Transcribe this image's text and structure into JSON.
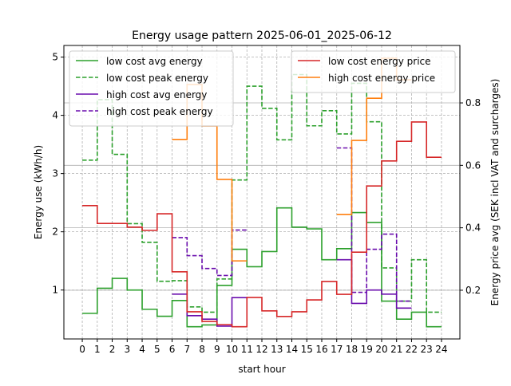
{
  "chart_data": {
    "type": "line",
    "step": "post",
    "title": "Energy usage pattern 2025-06-01_2025-06-12",
    "xlabel": "start hour",
    "ylabel": "Energy use (kWh/h)",
    "ylabel_right": "Energy price avg (SEK incl VAT and surcharges)",
    "x_ticks": [
      "0",
      "1",
      "2",
      "3",
      "4",
      "5",
      "6",
      "7",
      "8",
      "9",
      "10",
      "11",
      "12",
      "13",
      "14",
      "15",
      "16",
      "17",
      "18",
      "19",
      "20",
      "21",
      "22",
      "23",
      "24"
    ],
    "y_ticks": [
      "1",
      "2",
      "3",
      "4",
      "5"
    ],
    "y_ticks_right": [
      "0.2",
      "0.4",
      "0.6",
      "0.8"
    ],
    "xlim": [
      -1.23,
      25.23
    ],
    "ylim": [
      0.16,
      5.2
    ],
    "ylim_right": [
      0.044,
      0.984
    ],
    "grid": true,
    "legend_left_placement": "upper-left",
    "legend_right_placement": "upper-right",
    "series_left": [
      {
        "name": "low cost avg energy",
        "color": "#2ca02c",
        "dash": false,
        "values": [
          0.6,
          1.03,
          1.2,
          1.0,
          0.67,
          0.55,
          0.82,
          0.37,
          0.4,
          1.08,
          1.7,
          1.4,
          1.66,
          2.41,
          2.08,
          2.05,
          1.52,
          1.71,
          2.33,
          2.16,
          0.81,
          0.5,
          0.62,
          0.37
        ]
      },
      {
        "name": "low cost peak energy",
        "color": "#2ca02c",
        "dash": true,
        "values": [
          3.23,
          4.27,
          3.33,
          2.14,
          1.82,
          1.15,
          1.16,
          0.71,
          0.62,
          1.19,
          2.89,
          4.5,
          4.12,
          3.58,
          4.7,
          3.82,
          4.08,
          3.68,
          4.55,
          3.89,
          1.38,
          0.81,
          1.52,
          0.62
        ]
      },
      {
        "name": "high cost avg energy",
        "color": "#6a0dad",
        "dash": false,
        "values": [
          null,
          null,
          null,
          null,
          null,
          null,
          0.93,
          0.56,
          0.5,
          0.38,
          0.87,
          null,
          null,
          null,
          null,
          null,
          null,
          1.52,
          0.77,
          1.0,
          0.93,
          0.69,
          null,
          null
        ]
      },
      {
        "name": "high cost peak energy",
        "color": "#6a0dad",
        "dash": true,
        "values": [
          null,
          null,
          null,
          null,
          null,
          null,
          1.9,
          1.59,
          1.37,
          1.25,
          2.03,
          null,
          null,
          null,
          null,
          null,
          null,
          3.44,
          0.96,
          1.7,
          1.96,
          0.81,
          null,
          null
        ]
      }
    ],
    "series_right": [
      {
        "name": "low cost energy price",
        "color": "#d62728",
        "dash": false,
        "values": [
          0.471,
          0.414,
          0.414,
          0.402,
          0.392,
          0.445,
          0.259,
          0.131,
          0.1,
          0.09,
          0.083,
          0.177,
          0.134,
          0.116,
          0.131,
          0.169,
          0.228,
          0.187,
          0.322,
          0.534,
          0.614,
          0.677,
          0.739,
          0.626
        ]
      },
      {
        "name": "high cost energy price",
        "color": "#ff7f0e",
        "dash": false,
        "values": [
          null,
          null,
          null,
          null,
          null,
          null,
          0.683,
          0.859,
          0.726,
          0.555,
          0.294,
          null,
          null,
          null,
          null,
          null,
          null,
          0.443,
          0.68,
          0.815,
          0.943,
          0.874,
          null,
          null
        ]
      }
    ]
  }
}
